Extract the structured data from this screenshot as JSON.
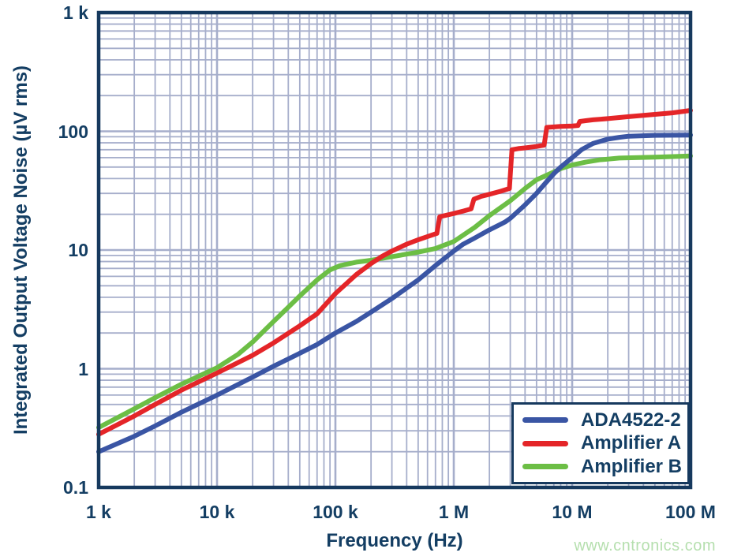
{
  "watermark": {
    "text": "www.cntronics.com",
    "color": "#b5dfae"
  },
  "colors": {
    "text_navy": "#143E63",
    "plot_border": "#16395E",
    "grid": "#A6AECB",
    "background": "#FFFFFF",
    "series_blue": "#3A55A4",
    "series_red": "#E42528",
    "series_green": "#6CBE45"
  },
  "axes": {
    "x": {
      "label": "Frequency (Hz)",
      "scale": "log",
      "min": 1000,
      "max": 100000000,
      "ticks": [
        {
          "label": "1 k",
          "value": 1000
        },
        {
          "label": "10 k",
          "value": 10000
        },
        {
          "label": "100 k",
          "value": 100000
        },
        {
          "label": "1 M",
          "value": 1000000
        },
        {
          "label": "10 M",
          "value": 10000000
        },
        {
          "label": "100 M",
          "value": 100000000
        }
      ]
    },
    "y": {
      "label": "Integrated Output Voltage Noise (µV rms)",
      "scale": "log",
      "min": 0.1,
      "max": 1000,
      "ticks": [
        {
          "label": "1 k",
          "value": 1000
        },
        {
          "label": "100",
          "value": 100
        },
        {
          "label": "10",
          "value": 10
        },
        {
          "label": "1",
          "value": 1
        },
        {
          "label": "0.1",
          "value": 0.1
        }
      ]
    }
  },
  "chart_data": {
    "type": "line",
    "title": "",
    "xlabel": "Frequency (Hz)",
    "ylabel": "Integrated Output Voltage Noise (µV rms)",
    "x_scale": "log",
    "y_scale": "log",
    "xlim": [
      1000,
      100000000
    ],
    "ylim": [
      0.1,
      1000
    ],
    "grid": "both axes, log decades with minor lines at 2-9",
    "legend_position": "lower right",
    "draw_order": [
      "Amplifier B",
      "Amplifier A",
      "ADA4522-2"
    ],
    "series": [
      {
        "name": "ADA4522-2",
        "color": "#3A55A4",
        "points": [
          [
            1000,
            0.2
          ],
          [
            2000,
            0.27
          ],
          [
            3000,
            0.33
          ],
          [
            5000,
            0.43
          ],
          [
            10000,
            0.6
          ],
          [
            20000,
            0.85
          ],
          [
            30000,
            1.05
          ],
          [
            50000,
            1.35
          ],
          [
            70000,
            1.6
          ],
          [
            100000,
            2.0
          ],
          [
            150000,
            2.5
          ],
          [
            200000,
            3.0
          ],
          [
            300000,
            3.9
          ],
          [
            500000,
            5.6
          ],
          [
            700000,
            7.4
          ],
          [
            1000000,
            9.8
          ],
          [
            1200000,
            11.2
          ],
          [
            1500000,
            12.6
          ],
          [
            2000000,
            14.8
          ],
          [
            2700000,
            17.2
          ],
          [
            3000000,
            18.5
          ],
          [
            4000000,
            24
          ],
          [
            5000000,
            30
          ],
          [
            6000000,
            37
          ],
          [
            7000000,
            44
          ],
          [
            8000000,
            50
          ],
          [
            10000000,
            60
          ],
          [
            12000000,
            70
          ],
          [
            15000000,
            79
          ],
          [
            20000000,
            86
          ],
          [
            25000000,
            89
          ],
          [
            30000000,
            91
          ],
          [
            50000000,
            92.5
          ],
          [
            100000000,
            93
          ]
        ]
      },
      {
        "name": "Amplifier A",
        "color": "#E42528",
        "points": [
          [
            1000,
            0.28
          ],
          [
            2000,
            0.4
          ],
          [
            3000,
            0.5
          ],
          [
            5000,
            0.66
          ],
          [
            10000,
            0.92
          ],
          [
            20000,
            1.3
          ],
          [
            30000,
            1.65
          ],
          [
            50000,
            2.3
          ],
          [
            70000,
            2.9
          ],
          [
            100000,
            4.3
          ],
          [
            150000,
            6.2
          ],
          [
            200000,
            7.7
          ],
          [
            250000,
            8.9
          ],
          [
            300000,
            9.8
          ],
          [
            400000,
            11.2
          ],
          [
            500000,
            12.2
          ],
          [
            600000,
            13.0
          ],
          [
            720000,
            13.8
          ],
          [
            760000,
            19.0
          ],
          [
            800000,
            19.3
          ],
          [
            1000000,
            20.3
          ],
          [
            1200000,
            21.3
          ],
          [
            1400000,
            22.2
          ],
          [
            1480000,
            26.8
          ],
          [
            1700000,
            28.3
          ],
          [
            2000000,
            29.5
          ],
          [
            2500000,
            31.3
          ],
          [
            2950000,
            33.0
          ],
          [
            3100000,
            70
          ],
          [
            3500000,
            71.5
          ],
          [
            4000000,
            72.5
          ],
          [
            5000000,
            74.5
          ],
          [
            5800000,
            76.5
          ],
          [
            6100000,
            108
          ],
          [
            7000000,
            109
          ],
          [
            8000000,
            110
          ],
          [
            10000000,
            111
          ],
          [
            11200000,
            112
          ],
          [
            11600000,
            121
          ],
          [
            13000000,
            123
          ],
          [
            15000000,
            125
          ],
          [
            20000000,
            128
          ],
          [
            30000000,
            133
          ],
          [
            50000000,
            139
          ],
          [
            70000000,
            143
          ],
          [
            100000000,
            150
          ]
        ]
      },
      {
        "name": "Amplifier B",
        "color": "#6CBE45",
        "points": [
          [
            1000,
            0.32
          ],
          [
            2000,
            0.46
          ],
          [
            3000,
            0.57
          ],
          [
            5000,
            0.74
          ],
          [
            10000,
            1.02
          ],
          [
            15000,
            1.32
          ],
          [
            20000,
            1.68
          ],
          [
            30000,
            2.5
          ],
          [
            40000,
            3.3
          ],
          [
            50000,
            4.1
          ],
          [
            70000,
            5.6
          ],
          [
            90000,
            6.8
          ],
          [
            110000,
            7.4
          ],
          [
            150000,
            7.9
          ],
          [
            200000,
            8.2
          ],
          [
            300000,
            8.8
          ],
          [
            500000,
            9.6
          ],
          [
            700000,
            10.3
          ],
          [
            1000000,
            11.8
          ],
          [
            1500000,
            15.5
          ],
          [
            2000000,
            19.5
          ],
          [
            3000000,
            26
          ],
          [
            4000000,
            33
          ],
          [
            5000000,
            39
          ],
          [
            7000000,
            45.5
          ],
          [
            8000000,
            48.5
          ],
          [
            10000000,
            52
          ],
          [
            13000000,
            55
          ],
          [
            17000000,
            57.5
          ],
          [
            25000000,
            59.5
          ],
          [
            50000000,
            60.5
          ],
          [
            100000000,
            62
          ]
        ]
      }
    ]
  },
  "legend": {
    "items": [
      {
        "label": "ADA4522-2",
        "color": "#3A55A4"
      },
      {
        "label": "Amplifier A",
        "color": "#E42528"
      },
      {
        "label": "Amplifier B",
        "color": "#6CBE45"
      }
    ]
  }
}
